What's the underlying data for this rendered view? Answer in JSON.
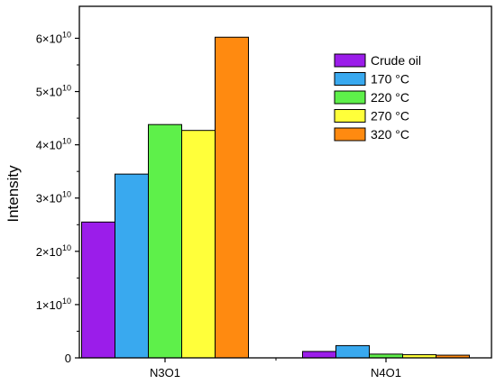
{
  "chart_data": {
    "type": "bar",
    "title": "",
    "xlabel": "",
    "ylabel": "Intensity",
    "categories": [
      "N3O1",
      "N4O1"
    ],
    "series": [
      {
        "name": "Crude oil",
        "values": [
          25500000000.0,
          1200000000.0
        ],
        "color": "#9b1dea"
      },
      {
        "name": "170 °C",
        "values": [
          34500000000.0,
          2300000000.0
        ],
        "color": "#39a9ef"
      },
      {
        "name": "220 °C",
        "values": [
          43800000000.0,
          700000000.0
        ],
        "color": "#5ef04a"
      },
      {
        "name": "270 °C",
        "values": [
          42700000000.0,
          600000000.0
        ],
        "color": "#ffff3a"
      },
      {
        "name": "320 °C",
        "values": [
          60200000000.0,
          500000000.0
        ],
        "color": "#ff8a10"
      }
    ],
    "ylim": [
      0,
      66000000000.0
    ],
    "yticks": [
      {
        "value": 0,
        "label": "0"
      },
      {
        "value": 10000000000.0,
        "label": "1×10",
        "exp": "10"
      },
      {
        "value": 20000000000.0,
        "label": "2×10",
        "exp": "10"
      },
      {
        "value": 30000000000.0,
        "label": "3×10",
        "exp": "10"
      },
      {
        "value": 40000000000.0,
        "label": "4×10",
        "exp": "10"
      },
      {
        "value": 50000000000.0,
        "label": "5×10",
        "exp": "10"
      },
      {
        "value": 60000000000.0,
        "label": "6×10",
        "exp": "10"
      }
    ],
    "grid": false,
    "legend_position": "top-right"
  }
}
